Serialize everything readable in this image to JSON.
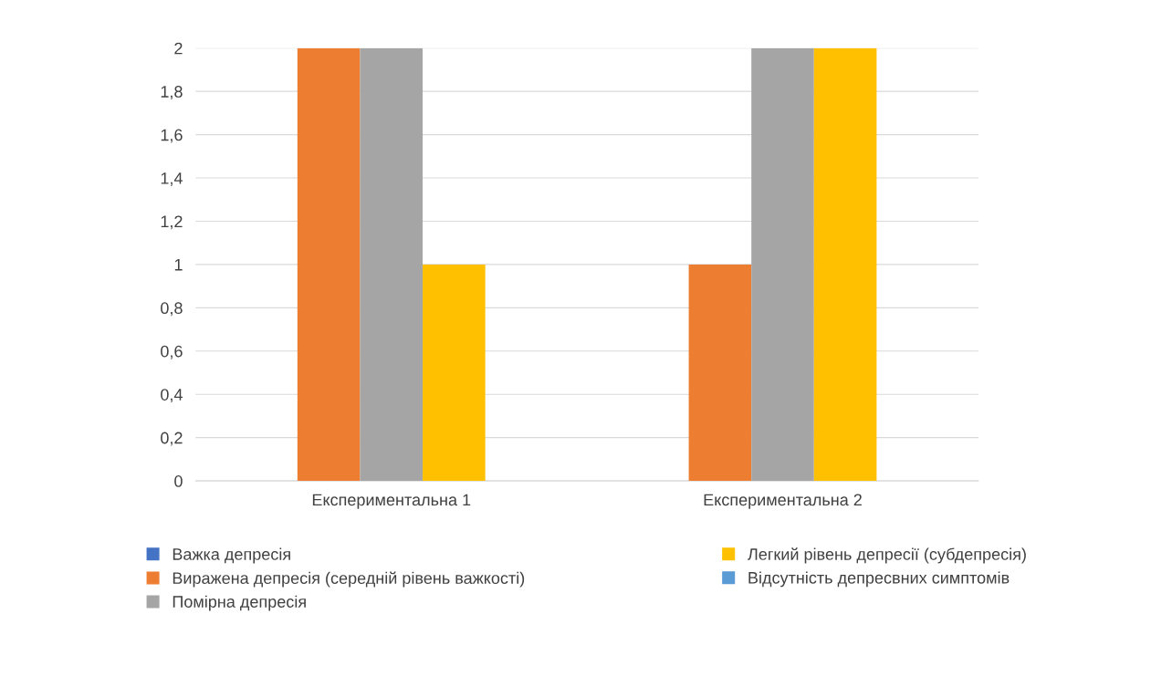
{
  "chart_data": {
    "type": "bar",
    "categories": [
      "Експериментальна 1",
      "Експериментальна 2"
    ],
    "series": [
      {
        "name": "Важка депресія",
        "color": "#4472c4",
        "values": [
          0,
          0
        ]
      },
      {
        "name": "Виражена депресія (середній рівень важкості)",
        "color": "#ed7d31",
        "values": [
          2,
          1
        ]
      },
      {
        "name": "Помірна депресія",
        "color": "#a5a5a5",
        "values": [
          2,
          2
        ]
      },
      {
        "name": "Легкий рівень депресії (субдепресія)",
        "color": "#ffc000",
        "values": [
          1,
          2
        ]
      },
      {
        "name": "Відсутність депресвних симптомів",
        "color": "#5b9bd5",
        "values": [
          0,
          0
        ]
      }
    ],
    "ylim": [
      0,
      2
    ],
    "yticks": [
      0,
      {
        "value": 0.2,
        "label": "0,2"
      },
      {
        "value": 0.4,
        "label": "0,4"
      },
      {
        "value": 0.6,
        "label": "0,6"
      },
      {
        "value": 0.8,
        "label": "0,8"
      },
      1,
      {
        "value": 1.2,
        "label": "1,2"
      },
      {
        "value": 1.4,
        "label": "1,4"
      },
      {
        "value": 1.6,
        "label": "1,6"
      },
      {
        "value": 1.8,
        "label": "1,8"
      },
      2
    ],
    "grid": "y",
    "legend": "bottom"
  }
}
